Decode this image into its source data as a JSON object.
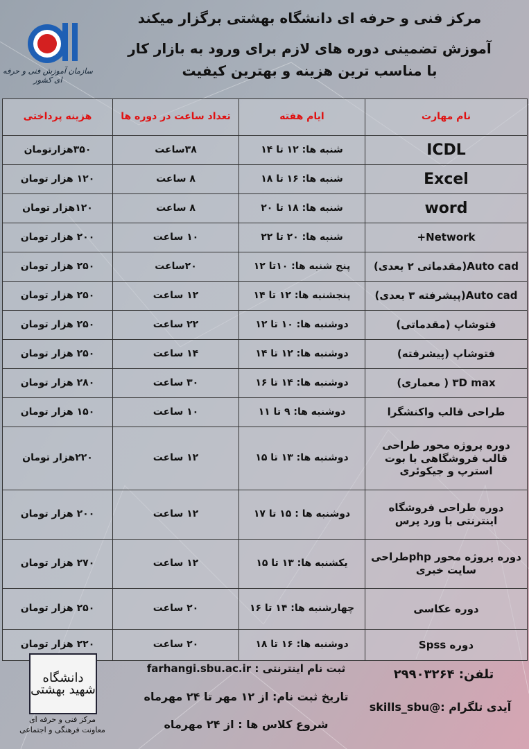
{
  "header": {
    "line1": "مرکز فنی و حرفه ای دانشگاه بهشتی برگزار میکند",
    "line2": "آموزش تضمینی دوره های لازم برای ورود به بازار کار",
    "line3": "با مناسب ترین هزینه و بهترین کیفیت",
    "logo_caption": "سازمان آموزش فنی و حرفه ای کشور"
  },
  "table": {
    "columns": [
      "نام مهارت",
      "ایام هفته",
      "تعداد ساعت در دوره ها",
      "هزینه پرداختی"
    ],
    "rows": [
      {
        "skill": "ICDL",
        "days": "شنبه ها: ۱۲ تا ۱۴",
        "hours": "۳۸ساعت",
        "cost": "۳۵۰هزارتومان"
      },
      {
        "skill": "Excel",
        "days": "شنبه ها: ۱۶ تا ۱۸",
        "hours": "۸ ساعت",
        "cost": "۱۲۰ هزار تومان"
      },
      {
        "skill": "word",
        "days": "شنبه ها: ۱۸ تا ۲۰",
        "hours": "۸ ساعت",
        "cost": "۱۲۰هزار تومان"
      },
      {
        "skill": "Network+",
        "days": "شنبه ها: ۲۰ تا ۲۲",
        "hours": "۱۰ ساعت",
        "cost": "۲۰۰ هزار تومان"
      },
      {
        "skill": "Auto cad(مقدماتی ۲ بعدی)",
        "days": "پنج شنبه ها: ۱۰تا ۱۲",
        "hours": "۲۰ساعت",
        "cost": "۲۵۰ هزار تومان"
      },
      {
        "skill": "Auto cad(پیشرفته ۳ بعدی)",
        "days": "پنجشنبه ها: ۱۲ تا ۱۴",
        "hours": "۱۲ ساعت",
        "cost": "۲۵۰ هزار تومان"
      },
      {
        "skill": "فتوشاپ (مقدماتی)",
        "days": "دوشنبه ها: ۱۰ تا ۱۲",
        "hours": "۲۲ ساعت",
        "cost": "۲۵۰ هزار تومان"
      },
      {
        "skill": "فتوشاپ (پیشرفته)",
        "days": "دوشنبه ها: ۱۲ تا ۱۴",
        "hours": "۱۴ ساعت",
        "cost": "۲۵۰ هزار تومان"
      },
      {
        "skill": "۳D max ( معماری)",
        "days": "دوشنبه ها: ۱۴ تا ۱۶",
        "hours": "۳۰ ساعت",
        "cost": "۲۸۰ هزار تومان"
      },
      {
        "skill": "طراحی قالب واکنشگرا",
        "days": "دوشنبه ها: ۹ تا ۱۱",
        "hours": "۱۰ ساعت",
        "cost": "۱۵۰ هزار تومان"
      },
      {
        "skill": "دوره پروژه محور طراحی قالب فروشگاهی با بوت استرپ و جیکوئری",
        "days": "دوشنبه ها: ۱۳ تا ۱۵",
        "hours": "۱۲ ساعت",
        "cost": "۲۲۰هزار تومان"
      },
      {
        "skill": "دوره طراحی فروشگاه اینترنتی با ورد پرس",
        "days": "دوشنبه ها : ۱۵ تا ۱۷",
        "hours": "۱۲ ساعت",
        "cost": "۲۰۰ هزار تومان"
      },
      {
        "skill": "دوره پروژه محور phpطراحی سایت خبری",
        "days": "یکشنبه ها: ۱۳ تا ۱۵",
        "hours": "۱۲ ساعت",
        "cost": "۲۷۰ هزار تومان"
      },
      {
        "skill": "دوره عکاسی",
        "days": "چهارشنبه ها: ۱۴ تا ۱۶",
        "hours": "۲۰ ساعت",
        "cost": "۲۵۰ هزار تومان"
      },
      {
        "skill": "دوره Spss",
        "days": "دوشنبه ها: ۱۶ تا ۱۸",
        "hours": "۲۰ ساعت",
        "cost": "۲۲۰ هزار تومان"
      }
    ]
  },
  "footer": {
    "phone": "تلفن: ۲۹۹۰۳۲۶۴",
    "telegram": "آیدی تلگرام :@skills_sbu",
    "online_reg": "ثبت نام اینترنتی : farhangi.sbu.ac.ir",
    "reg_date": "تاریخ ثبت نام: از ۱۲ مهر تا ۲۴ مهرماه",
    "class_start": "شروع کلاس ها : از ۲۴ مهرماه",
    "uni_logo": "دانشگاه شهید بهشتی",
    "uni_caption_1": "مرکز فنی و حرفه ای",
    "uni_caption_2": "معاونت فرهنگی و اجتماعی"
  },
  "colors": {
    "header_text": "#e01010",
    "logo_blue": "#1e5fb4",
    "logo_red": "#d42020"
  }
}
